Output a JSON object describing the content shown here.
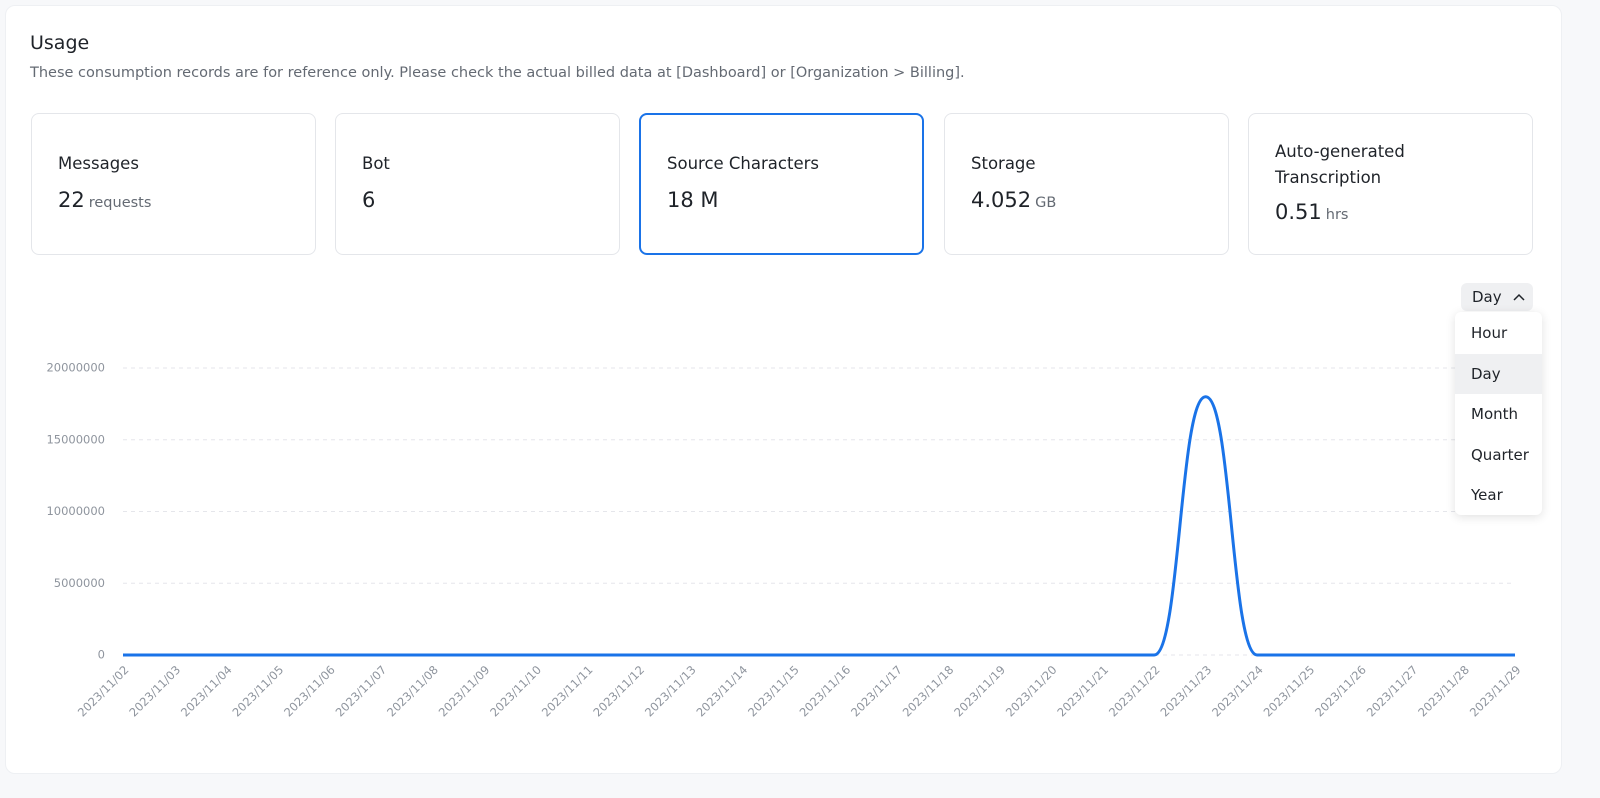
{
  "header": {
    "title": "Usage",
    "subtitle": "These consumption records are for reference only. Please check the actual billed data at [Dashboard] or [Organization > Billing]."
  },
  "cards": [
    {
      "label": "Messages",
      "value": 22,
      "unit": "requests"
    },
    {
      "label": "Bot",
      "value": 6
    },
    {
      "label": "Source Characters",
      "value": "18 M",
      "selected": true
    },
    {
      "label": "Storage",
      "value": 4.052,
      "unit": "GB"
    },
    {
      "label": "Auto-generated Transcription",
      "value": 0.51,
      "unit": "hrs"
    }
  ],
  "granularity": {
    "selected": "Day",
    "options": [
      "Hour",
      "Day",
      "Month",
      "Quarter",
      "Year"
    ]
  },
  "chart_data": {
    "type": "line",
    "categories": [
      "2023/11/02",
      "2023/11/03",
      "2023/11/04",
      "2023/11/05",
      "2023/11/06",
      "2023/11/07",
      "2023/11/08",
      "2023/11/09",
      "2023/11/10",
      "2023/11/11",
      "2023/11/12",
      "2023/11/13",
      "2023/11/14",
      "2023/11/15",
      "2023/11/16",
      "2023/11/17",
      "2023/11/18",
      "2023/11/19",
      "2023/11/20",
      "2023/11/21",
      "2023/11/22",
      "2023/11/23",
      "2023/11/24",
      "2023/11/25",
      "2023/11/26",
      "2023/11/27",
      "2023/11/28",
      "2023/11/29"
    ],
    "values": [
      0,
      0,
      0,
      0,
      0,
      0,
      0,
      0,
      0,
      0,
      0,
      0,
      0,
      0,
      0,
      0,
      0,
      0,
      0,
      0,
      0,
      18000000,
      0,
      0,
      0,
      0,
      0,
      0
    ],
    "color": "#1a73e8",
    "ylim": [
      0,
      20000000
    ],
    "yticks": [
      0,
      5000000,
      10000000,
      15000000,
      20000000
    ],
    "grid": true
  }
}
